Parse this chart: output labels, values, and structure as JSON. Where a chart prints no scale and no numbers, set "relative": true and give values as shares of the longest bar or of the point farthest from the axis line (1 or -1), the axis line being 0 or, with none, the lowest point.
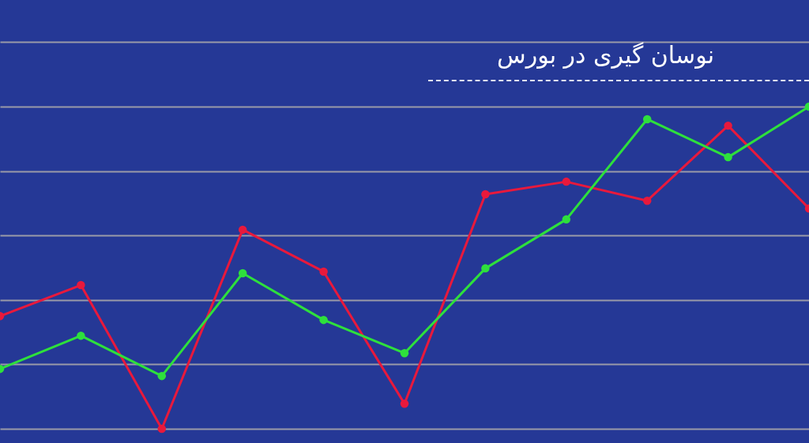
{
  "chart_data": {
    "type": "line",
    "title": "نوسان گیری در بورس",
    "relative": true,
    "categories": [
      null,
      null,
      null,
      null,
      null,
      null,
      null,
      null,
      null,
      null,
      null
    ],
    "series": [
      {
        "color": "#e8193c",
        "values": [
          0.35,
          0.446,
          0,
          0.618,
          0.488,
          0.078,
          0.728,
          0.767,
          0.708,
          0.941,
          0.684
        ]
      },
      {
        "color": "#2ee03c",
        "values": [
          0.186,
          0.289,
          0.164,
          0.483,
          0.338,
          0.235,
          0.498,
          0.65,
          0.961,
          0.843,
          1
        ]
      }
    ],
    "marker": "circle",
    "grid": "y",
    "legend": false
  }
}
